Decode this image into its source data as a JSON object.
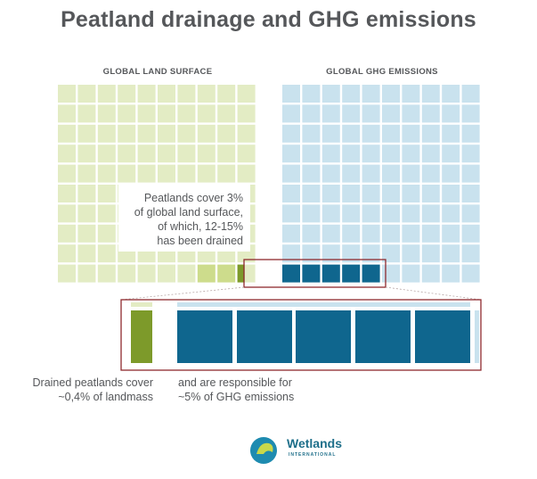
{
  "title": "Peatland drainage and GHG emissions",
  "land_heading": "GLOBAL LAND SURFACE",
  "ghg_heading": "GLOBAL GHG EMISSIONS",
  "callout": "Peatlands cover 3%\nof global land surface,\nof which, 12-15%\nhas been drained",
  "caption_left": "Drained peatlands cover\n~0,4% of landmass",
  "caption_right": "and are responsible for\n~5% of GHG emissions",
  "logo": {
    "name": "Wetlands",
    "sub": "INTERNATIONAL"
  },
  "colors": {
    "land_light": "#e3ecc4",
    "land_mid": "#cddc8c",
    "land_dark": "#7d9a2a",
    "ghg_light": "#c9e2ee",
    "ghg_dark": "#0f668e",
    "frame": "#8e2a2e",
    "text": "#55575a"
  },
  "figures": {
    "peatland_share_land_pct": 3,
    "drained_share_peatland_pct": "12-15",
    "drained_share_land_pct": 0.4,
    "drained_share_ghg_pct": 5
  }
}
